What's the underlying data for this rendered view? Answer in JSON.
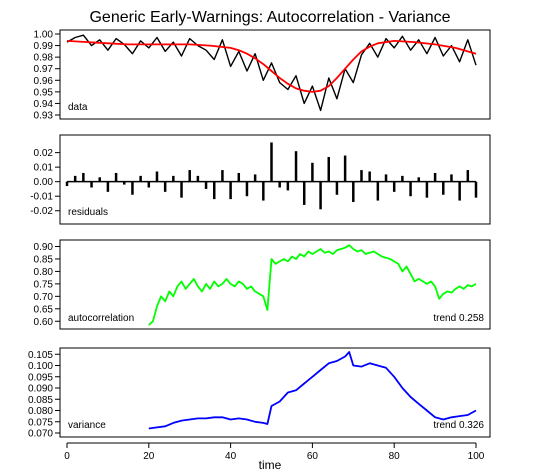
{
  "chart_data": {
    "type": "line",
    "title": "Generic Early-Warnings: Autocorrelation - Variance",
    "xlabel": "time",
    "x_axis": {
      "range": [
        0,
        100
      ],
      "ticks": [
        "0",
        "20",
        "40",
        "60",
        "80",
        "100"
      ]
    },
    "panels": [
      {
        "label": "data",
        "ylim": [
          0.93,
          1.0
        ],
        "yticks": [
          "1.00",
          "0.99",
          "0.98",
          "0.97",
          "0.96",
          "0.95",
          "0.94",
          "0.93"
        ],
        "series": [
          {
            "style": "raw",
            "color": "#000000",
            "x": [
              0,
              2,
              4,
              6,
              8,
              10,
              12,
              14,
              16,
              18,
              20,
              22,
              24,
              26,
              28,
              30,
              32,
              34,
              36,
              38,
              40,
              42,
              44,
              46,
              48,
              50,
              52,
              54,
              56,
              58,
              60,
              62,
              64,
              66,
              68,
              70,
              72,
              74,
              76,
              78,
              80,
              82,
              84,
              86,
              88,
              90,
              92,
              94,
              96,
              98,
              100
            ],
            "y": [
              0.993,
              0.997,
              0.999,
              0.99,
              0.995,
              0.986,
              0.996,
              0.991,
              0.983,
              0.994,
              0.988,
              0.997,
              0.985,
              0.993,
              0.981,
              0.996,
              0.99,
              0.986,
              0.978,
              0.995,
              0.972,
              0.985,
              0.968,
              0.983,
              0.96,
              0.975,
              0.958,
              0.952,
              0.964,
              0.94,
              0.955,
              0.934,
              0.962,
              0.944,
              0.97,
              0.958,
              0.982,
              0.992,
              0.98,
              0.996,
              0.988,
              0.998,
              0.986,
              0.995,
              0.983,
              0.997,
              0.981,
              0.99,
              0.976,
              0.995,
              0.973
            ]
          },
          {
            "style": "trend",
            "color": "#ff0000",
            "x": [
              0,
              5,
              10,
              15,
              20,
              25,
              30,
              35,
              40,
              42,
              44,
              46,
              48,
              50,
              52,
              54,
              56,
              58,
              60,
              62,
              64,
              66,
              68,
              70,
              72,
              74,
              76,
              78,
              80,
              85,
              90,
              95,
              100
            ],
            "y": [
              0.994,
              0.993,
              0.992,
              0.991,
              0.991,
              0.991,
              0.991,
              0.99,
              0.988,
              0.986,
              0.983,
              0.979,
              0.974,
              0.968,
              0.962,
              0.957,
              0.953,
              0.951,
              0.95,
              0.951,
              0.955,
              0.962,
              0.97,
              0.978,
              0.985,
              0.989,
              0.992,
              0.993,
              0.994,
              0.993,
              0.991,
              0.988,
              0.983
            ]
          }
        ]
      },
      {
        "label": "residuals",
        "ylim": [
          -0.025,
          0.028
        ],
        "yticks": [
          "0.02",
          "0.01",
          "0.00",
          "-0.01",
          "-0.02"
        ],
        "series": [
          {
            "style": "bars",
            "color": "#000000",
            "x": [
              0,
              2,
              4,
              6,
              8,
              10,
              12,
              14,
              16,
              18,
              20,
              22,
              24,
              26,
              28,
              30,
              32,
              34,
              36,
              38,
              40,
              42,
              44,
              46,
              48,
              50,
              52,
              54,
              56,
              58,
              60,
              62,
              64,
              66,
              68,
              70,
              72,
              74,
              76,
              78,
              80,
              82,
              84,
              86,
              88,
              90,
              92,
              94,
              96,
              98,
              100
            ],
            "y": [
              -0.003,
              0.004,
              0.006,
              -0.004,
              0.003,
              -0.007,
              0.006,
              -0.002,
              -0.009,
              0.004,
              -0.004,
              0.007,
              -0.007,
              0.004,
              -0.011,
              0.008,
              0.004,
              -0.005,
              -0.012,
              0.008,
              -0.012,
              0.006,
              -0.01,
              0.005,
              -0.013,
              0.027,
              -0.004,
              -0.006,
              0.021,
              -0.016,
              0.013,
              -0.019,
              0.017,
              -0.009,
              0.018,
              -0.014,
              0.008,
              0.007,
              -0.013,
              0.005,
              -0.007,
              0.004,
              -0.01,
              0.003,
              -0.011,
              0.006,
              -0.009,
              0.005,
              -0.013,
              0.008,
              -0.011
            ]
          }
        ]
      },
      {
        "label": "autocorrelation",
        "ylim": [
          0.585,
          0.91
        ],
        "yticks": [
          "0.90",
          "0.85",
          "0.80",
          "0.75",
          "0.70",
          "0.65",
          "0.60"
        ],
        "trend_text": "trend  0.258",
        "series": [
          {
            "style": "indicator",
            "color": "#00ff00",
            "x": [
              20,
              21,
              22,
              23,
              24,
              25,
              26,
              27,
              28,
              29,
              30,
              31,
              32,
              33,
              34,
              35,
              36,
              37,
              38,
              39,
              40,
              41,
              42,
              43,
              44,
              45,
              46,
              47,
              48,
              49,
              50,
              51,
              52,
              53,
              54,
              55,
              56,
              57,
              58,
              59,
              60,
              61,
              62,
              63,
              64,
              65,
              66,
              67,
              68,
              69,
              70,
              71,
              72,
              73,
              74,
              75,
              76,
              77,
              78,
              79,
              80,
              81,
              82,
              83,
              84,
              85,
              86,
              87,
              88,
              89,
              90,
              91,
              92,
              93,
              94,
              95,
              96,
              97,
              98,
              99,
              100
            ],
            "y": [
              0.585,
              0.6,
              0.66,
              0.7,
              0.68,
              0.72,
              0.7,
              0.74,
              0.76,
              0.73,
              0.75,
              0.77,
              0.74,
              0.72,
              0.75,
              0.73,
              0.76,
              0.74,
              0.75,
              0.77,
              0.75,
              0.74,
              0.76,
              0.75,
              0.73,
              0.74,
              0.72,
              0.71,
              0.7,
              0.645,
              0.85,
              0.83,
              0.84,
              0.85,
              0.84,
              0.86,
              0.85,
              0.87,
              0.86,
              0.88,
              0.87,
              0.88,
              0.89,
              0.875,
              0.88,
              0.87,
              0.885,
              0.89,
              0.895,
              0.905,
              0.89,
              0.88,
              0.885,
              0.87,
              0.875,
              0.88,
              0.87,
              0.86,
              0.855,
              0.85,
              0.84,
              0.83,
              0.8,
              0.82,
              0.79,
              0.76,
              0.77,
              0.76,
              0.75,
              0.76,
              0.74,
              0.69,
              0.71,
              0.72,
              0.715,
              0.73,
              0.74,
              0.73,
              0.745,
              0.74,
              0.75
            ]
          }
        ]
      },
      {
        "label": "variance",
        "ylim": [
          0.07,
          0.106
        ],
        "yticks": [
          "0.105",
          "0.100",
          "0.095",
          "0.090",
          "0.085",
          "0.080",
          "0.075",
          "0.070"
        ],
        "trend_text": "trend  0.326",
        "series": [
          {
            "style": "indicator",
            "color": "#0000ff",
            "x": [
              20,
              22,
              24,
              26,
              28,
              30,
              32,
              34,
              36,
              38,
              40,
              42,
              44,
              46,
              48,
              49,
              50,
              52,
              54,
              56,
              58,
              60,
              62,
              64,
              66,
              68,
              69,
              70,
              72,
              74,
              76,
              78,
              80,
              82,
              84,
              86,
              88,
              90,
              92,
              94,
              96,
              98,
              100
            ],
            "y": [
              0.072,
              0.0725,
              0.073,
              0.0745,
              0.0755,
              0.076,
              0.0765,
              0.0765,
              0.077,
              0.077,
              0.076,
              0.0765,
              0.076,
              0.075,
              0.0745,
              0.074,
              0.082,
              0.084,
              0.088,
              0.089,
              0.092,
              0.095,
              0.098,
              0.101,
              0.102,
              0.104,
              0.106,
              0.1,
              0.0995,
              0.101,
              0.1,
              0.099,
              0.095,
              0.09,
              0.086,
              0.083,
              0.08,
              0.077,
              0.076,
              0.077,
              0.0775,
              0.078,
              0.08
            ]
          }
        ]
      }
    ]
  }
}
